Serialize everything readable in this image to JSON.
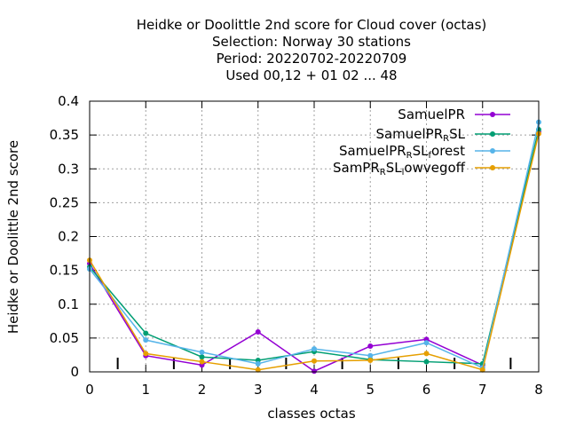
{
  "chart_data": {
    "type": "line",
    "title_lines": [
      "Heidke or Doolittle 2nd score  for Cloud cover (octas)",
      "Selection: Norway     30 stations",
      "Period: 20220702-20220709",
      "Used  00,12  + 01 02 ... 48"
    ],
    "xlabel": "classes octas",
    "ylabel": "Heidke or Doolittle 2nd score",
    "xlim": [
      0,
      8
    ],
    "ylim": [
      0,
      0.4
    ],
    "x_ticks": [
      "0",
      "1",
      "2",
      "3",
      "4",
      "5",
      "6",
      "7",
      "8"
    ],
    "y_ticks": [
      "0",
      "0.05",
      "0.1",
      "0.15",
      "0.2",
      "0.25",
      "0.3",
      "0.35",
      "0.4"
    ],
    "grid": true,
    "legend_position": "top-right",
    "minor_markers_x": [
      0.5,
      1.5,
      2.5,
      3.5,
      4.5,
      5.5,
      6.5,
      7.5
    ],
    "x": [
      0,
      1,
      2,
      3,
      4,
      5,
      6,
      7,
      8
    ],
    "series": [
      {
        "name": "SamuelPR",
        "legend_main": "SamuelPR",
        "legend_sub": "",
        "legend_tail": "",
        "color": "#9400d3",
        "values": [
          0.16,
          0.024,
          0.01,
          0.059,
          0.001,
          0.038,
          0.048,
          0.01,
          0.355
        ]
      },
      {
        "name": "SamuelPR_RSL",
        "legend_main": "SamuelPR",
        "legend_sub": "R",
        "legend_tail": "SL",
        "color": "#009e73",
        "values": [
          0.155,
          0.057,
          0.022,
          0.017,
          0.03,
          0.018,
          0.015,
          0.012,
          0.358
        ]
      },
      {
        "name": "SamuelPR_RSL_forest",
        "legend_main": "SamuelPR",
        "legend_sub": "R",
        "legend_tail": "SL",
        "legend_sub2": "f",
        "legend_tail2": "orest",
        "color": "#56b4e9",
        "values": [
          0.152,
          0.047,
          0.029,
          0.012,
          0.034,
          0.024,
          0.043,
          0.006,
          0.369
        ]
      },
      {
        "name": "SamPR_RSL_lowvegoff",
        "legend_main": "SamPR",
        "legend_sub": "R",
        "legend_tail": "SL",
        "legend_sub2": "l",
        "legend_tail2": "owvegoff",
        "color": "#e69f00",
        "values": [
          0.165,
          0.027,
          0.015,
          0.003,
          0.016,
          0.017,
          0.027,
          0.003,
          0.352
        ]
      }
    ]
  }
}
